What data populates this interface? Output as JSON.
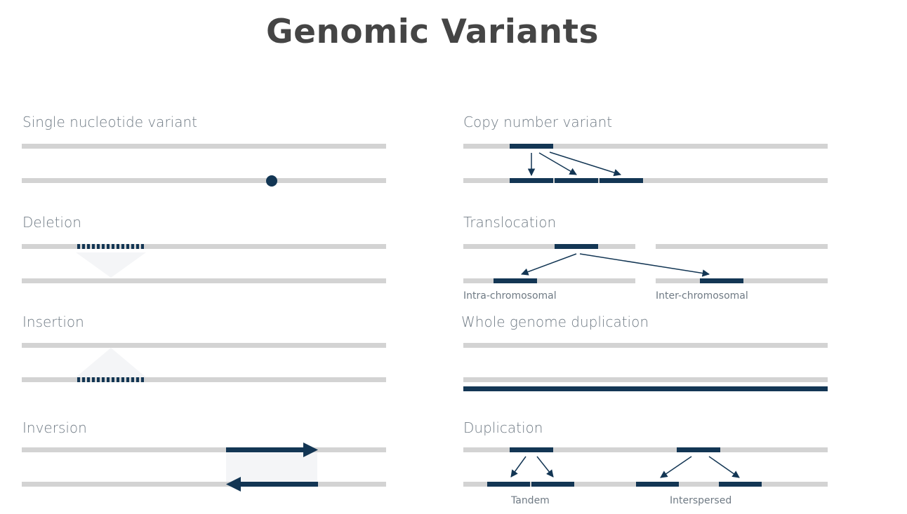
{
  "title": "Genomic Variants",
  "panels": {
    "snv": {
      "label": "Single nucleotide variant"
    },
    "cnv": {
      "label": "Copy number variant"
    },
    "deletion": {
      "label": "Deletion"
    },
    "translocation": {
      "label": "Translocation",
      "intra_label": "Intra-chromosomal",
      "inter_label": "Inter-chromosomal"
    },
    "insertion": {
      "label": "Insertion"
    },
    "wgd": {
      "label": "Whole genome duplication"
    },
    "inversion": {
      "label": "Inversion"
    },
    "duplication": {
      "label": "Duplication",
      "tandem_label": "Tandem",
      "interspersed_label": "Interspersed"
    }
  },
  "colors": {
    "strand": "#d3d3d3",
    "variant": "#133654",
    "title": "#454545",
    "label": "#6f7a84"
  }
}
